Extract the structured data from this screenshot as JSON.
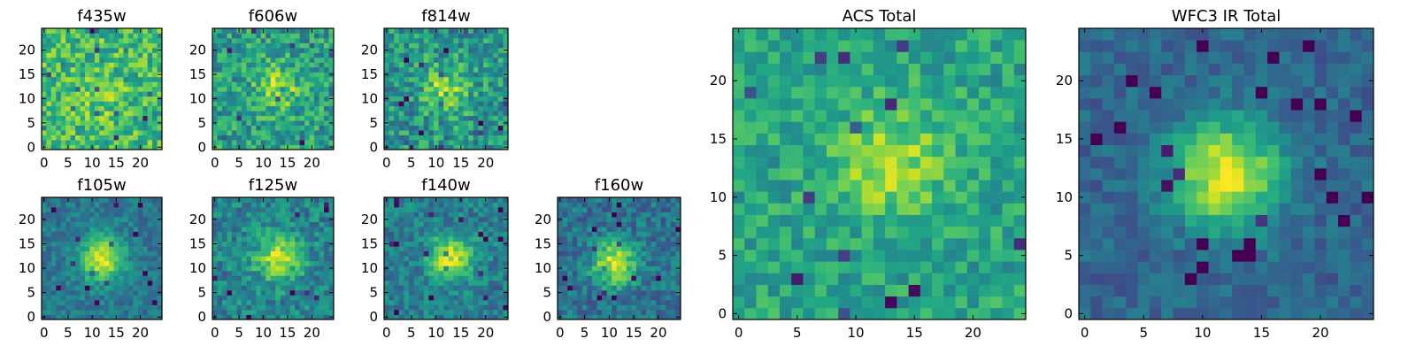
{
  "chart_data": [
    {
      "type": "heatmap",
      "title": "f435w",
      "x_ticks": [
        "0",
        "5",
        "10",
        "15",
        "20"
      ],
      "y_ticks": [
        "0",
        "5",
        "10",
        "15",
        "20"
      ],
      "xlim": [
        -0.5,
        24.5
      ],
      "ylim": [
        -0.5,
        24.5
      ],
      "colormap": "viridis",
      "grid_size": 25,
      "peak": [
        12,
        10
      ],
      "peak_strength": 0.1,
      "noise_level": 0.42,
      "base_level": 0.68
    },
    {
      "type": "heatmap",
      "title": "f606w",
      "x_ticks": [
        "0",
        "5",
        "10",
        "15",
        "20"
      ],
      "y_ticks": [
        "0",
        "5",
        "10",
        "15",
        "20"
      ],
      "xlim": [
        -0.5,
        24.5
      ],
      "ylim": [
        -0.5,
        24.5
      ],
      "colormap": "viridis",
      "grid_size": 25,
      "peak": [
        13,
        12
      ],
      "peak_strength": 0.3,
      "noise_level": 0.42,
      "base_level": 0.55
    },
    {
      "type": "heatmap",
      "title": "f814w",
      "x_ticks": [
        "0",
        "5",
        "10",
        "15",
        "20"
      ],
      "y_ticks": [
        "0",
        "5",
        "10",
        "15",
        "20"
      ],
      "xlim": [
        -0.5,
        24.5
      ],
      "ylim": [
        -0.5,
        24.5
      ],
      "colormap": "viridis",
      "grid_size": 25,
      "peak": [
        12,
        12
      ],
      "peak_strength": 0.35,
      "noise_level": 0.42,
      "base_level": 0.52
    },
    {
      "type": "heatmap",
      "title": "f105w",
      "x_ticks": [
        "0",
        "5",
        "10",
        "15",
        "20"
      ],
      "y_ticks": [
        "0",
        "5",
        "10",
        "15",
        "20"
      ],
      "xlim": [
        -0.5,
        24.5
      ],
      "ylim": [
        -0.5,
        24.5
      ],
      "colormap": "viridis",
      "grid_size": 25,
      "peak": [
        12,
        12
      ],
      "peak_strength": 0.55,
      "noise_level": 0.24,
      "base_level": 0.4
    },
    {
      "type": "heatmap",
      "title": "f125w",
      "x_ticks": [
        "0",
        "5",
        "10",
        "15",
        "20"
      ],
      "y_ticks": [
        "0",
        "5",
        "10",
        "15",
        "20"
      ],
      "xlim": [
        -0.5,
        24.5
      ],
      "ylim": [
        -0.5,
        24.5
      ],
      "colormap": "viridis",
      "grid_size": 25,
      "peak": [
        13,
        12
      ],
      "peak_strength": 0.45,
      "noise_level": 0.34,
      "base_level": 0.45
    },
    {
      "type": "heatmap",
      "title": "f140w",
      "x_ticks": [
        "0",
        "5",
        "10",
        "15",
        "20"
      ],
      "y_ticks": [
        "0",
        "5",
        "10",
        "15",
        "20"
      ],
      "xlim": [
        -0.5,
        24.5
      ],
      "ylim": [
        -0.5,
        24.5
      ],
      "colormap": "viridis",
      "grid_size": 25,
      "peak": [
        13,
        12
      ],
      "peak_strength": 0.5,
      "noise_level": 0.3,
      "base_level": 0.42
    },
    {
      "type": "heatmap",
      "title": "f160w",
      "x_ticks": [
        "0",
        "5",
        "10",
        "15",
        "20"
      ],
      "y_ticks": [
        "0",
        "5",
        "10",
        "15",
        "20"
      ],
      "xlim": [
        -0.5,
        24.5
      ],
      "ylim": [
        -0.5,
        24.5
      ],
      "colormap": "viridis",
      "grid_size": 25,
      "peak": [
        11,
        11
      ],
      "peak_strength": 0.55,
      "noise_level": 0.3,
      "base_level": 0.38
    },
    {
      "type": "heatmap",
      "title": "ACS Total",
      "x_ticks": [
        "0",
        "5",
        "10",
        "15",
        "20"
      ],
      "y_ticks": [
        "0",
        "5",
        "10",
        "15",
        "20"
      ],
      "xlim": [
        -0.5,
        24.5
      ],
      "ylim": [
        -0.5,
        24.5
      ],
      "colormap": "viridis",
      "grid_size": 25,
      "peak": [
        13,
        13
      ],
      "peak_strength": 0.3,
      "noise_level": 0.3,
      "base_level": 0.58
    },
    {
      "type": "heatmap",
      "title": "WFC3 IR Total",
      "x_ticks": [
        "0",
        "5",
        "10",
        "15",
        "20"
      ],
      "y_ticks": [
        "0",
        "5",
        "10",
        "15",
        "20"
      ],
      "xlim": [
        -0.5,
        24.5
      ],
      "ylim": [
        -0.5,
        24.5
      ],
      "colormap": "viridis",
      "grid_size": 25,
      "peak": [
        12,
        12
      ],
      "peak_strength": 0.65,
      "noise_level": 0.2,
      "base_level": 0.33
    }
  ]
}
